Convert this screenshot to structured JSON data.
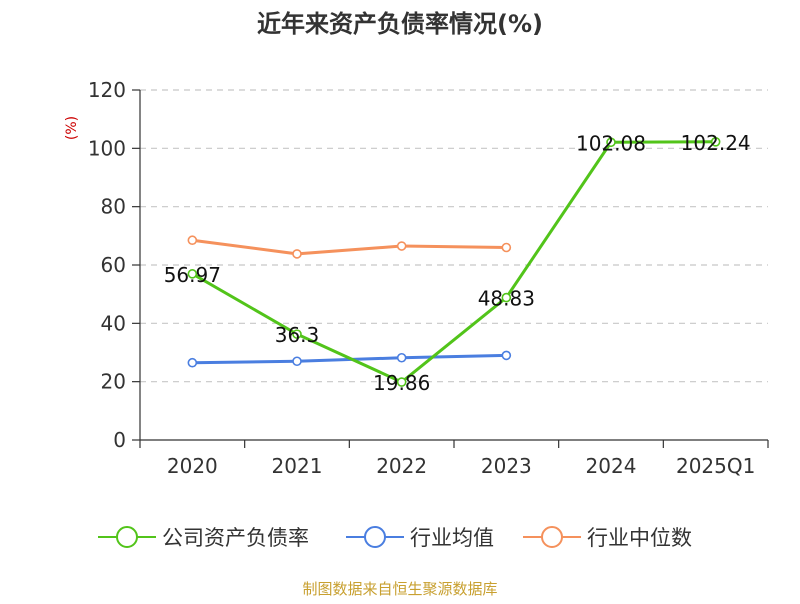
{
  "chart_data": {
    "type": "line",
    "title": "近年来资产负债率情况(%)",
    "ylabel": "(%)",
    "xlabel": "",
    "categories": [
      "2020",
      "2021",
      "2022",
      "2023",
      "2024",
      "2025Q1"
    ],
    "ylim": [
      0,
      120
    ],
    "yticks": [
      0,
      20,
      40,
      60,
      80,
      100,
      120
    ],
    "grid": true,
    "legend_position": "bottom",
    "series": [
      {
        "name": "公司资产负债率",
        "color": "#52c41a",
        "values": [
          56.97,
          36.3,
          19.86,
          48.83,
          102.08,
          102.24
        ],
        "labels": [
          "56.97",
          "36.3",
          "19.86",
          "48.83",
          "102.08",
          "102.24"
        ]
      },
      {
        "name": "行业均值",
        "color": "#4a7ee0",
        "values": [
          26.5,
          27.0,
          28.2,
          29.0,
          null,
          null
        ]
      },
      {
        "name": "行业中位数",
        "color": "#f5915c",
        "values": [
          68.5,
          63.8,
          66.5,
          66.0,
          null,
          null
        ]
      }
    ],
    "source": "制图数据来自恒生聚源数据库"
  },
  "colors": {
    "title": "#333333",
    "axis": "#333333",
    "grid": "#c8c8c8",
    "ylabel": "#cc0000",
    "source": "#c8a030"
  }
}
